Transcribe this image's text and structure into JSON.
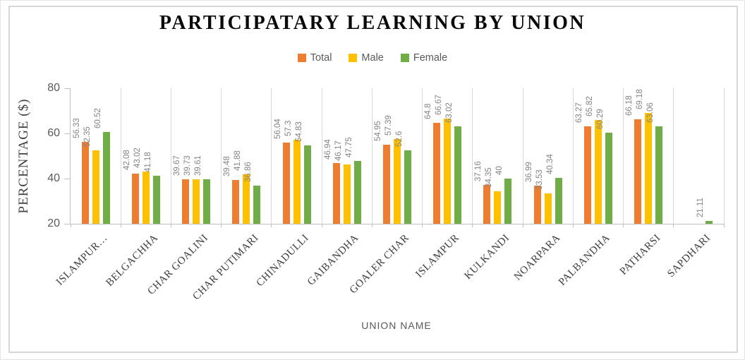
{
  "chart_data": {
    "type": "bar",
    "title": "PARTICIPATARY LEARNING BY UNION",
    "xlabel": "UNION NAME",
    "ylabel": "PERCENTAGE ($)",
    "ylim": [
      20,
      80
    ],
    "yticks": [
      20,
      40,
      60,
      80
    ],
    "grid": "vertical-category-separators",
    "legend_position": "top",
    "categories": [
      "ISLAMPUR…",
      "BELGACHHA",
      "CHAR GOALINI",
      "CHAR PUTIMARI",
      "CHINADULLI",
      "GAIBANDHA",
      "GOALER CHAR",
      "ISLAMPUR",
      "KULKANDI",
      "NOARPARA",
      "PALBANDHA",
      "PATHARSI",
      "SAPDHARI"
    ],
    "series": [
      {
        "name": "Total",
        "color": "#ED7D31",
        "values": [
          56.33,
          42.08,
          39.67,
          39.48,
          56.04,
          46.94,
          54.95,
          64.8,
          37.16,
          36.99,
          63.27,
          66.18,
          null
        ]
      },
      {
        "name": "Male",
        "color": "#FFC000",
        "values": [
          52.35,
          43.02,
          39.73,
          41.88,
          57.3,
          46.17,
          57.39,
          66.67,
          34.35,
          33.53,
          65.82,
          69.18,
          null
        ]
      },
      {
        "name": "Female",
        "color": "#70AD47",
        "values": [
          60.52,
          41.18,
          39.61,
          36.86,
          54.83,
          47.75,
          52.6,
          63.02,
          40,
          40.34,
          60.29,
          63.06,
          21.11
        ]
      }
    ]
  },
  "colors": {
    "gridline": "#D9D9D9",
    "axis": "#BFBFBF",
    "data_label": "#848484",
    "tick_label": "#595959",
    "category_label": "#3D3D3D",
    "frame_border": "#D6D6D6",
    "title": "#0A0A0A"
  }
}
